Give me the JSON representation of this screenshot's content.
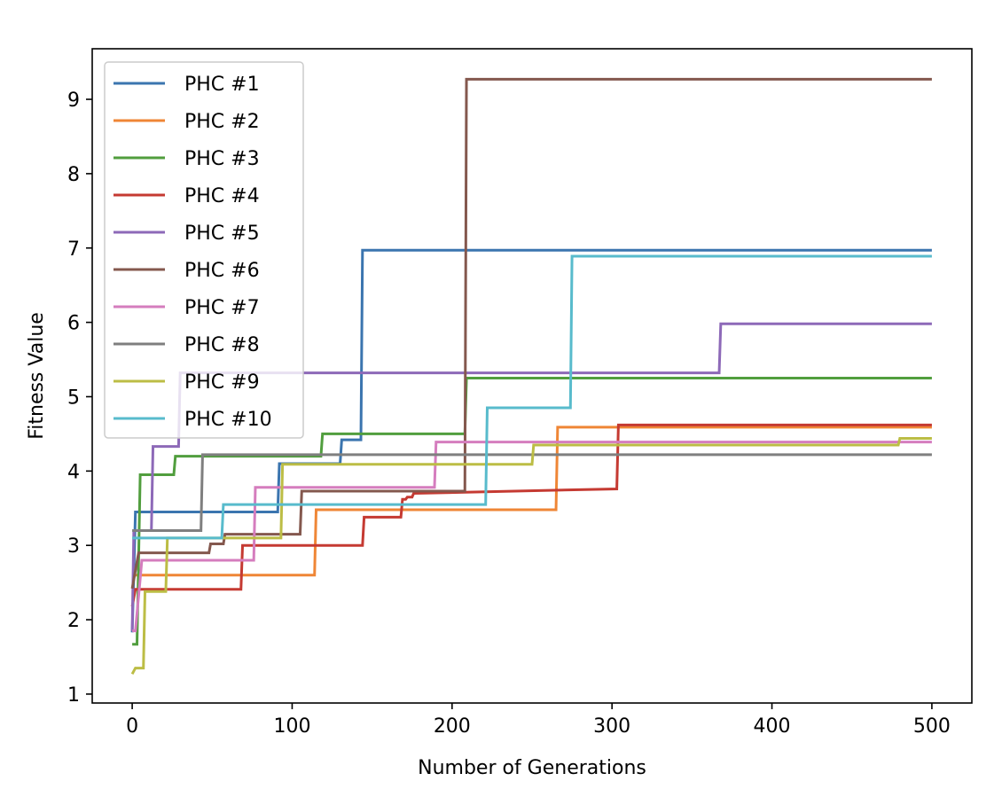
{
  "chart_data": {
    "type": "line",
    "title": "",
    "xlabel": "Number of Generations",
    "ylabel": "Fitness Value",
    "xlim": [
      -25,
      525
    ],
    "ylim": [
      0.88,
      9.68
    ],
    "xticks": [
      0,
      100,
      200,
      300,
      400,
      500
    ],
    "yticks": [
      1,
      2,
      3,
      4,
      5,
      6,
      7,
      8,
      9
    ],
    "legend_position": "upper-left",
    "grid": false,
    "series": [
      {
        "name": "PHC #1",
        "color": "#3b75af",
        "x": [
          0,
          1,
          2,
          91,
          92,
          130,
          131,
          143,
          144,
          500
        ],
        "y": [
          1.83,
          2.6,
          3.45,
          3.45,
          4.1,
          4.1,
          4.42,
          4.42,
          6.97,
          6.97
        ]
      },
      {
        "name": "PHC #2",
        "color": "#ef8636",
        "x": [
          0,
          114,
          115,
          265,
          266,
          500
        ],
        "y": [
          2.6,
          2.6,
          3.48,
          3.48,
          4.59,
          4.59
        ]
      },
      {
        "name": "PHC #3",
        "color": "#519e3e",
        "x": [
          0,
          3,
          5,
          26,
          27,
          118,
          119,
          208,
          209,
          500
        ],
        "y": [
          1.67,
          1.67,
          3.95,
          3.95,
          4.2,
          4.2,
          4.5,
          4.5,
          5.25,
          5.25
        ]
      },
      {
        "name": "PHC #4",
        "color": "#c53a32",
        "x": [
          0,
          2,
          68,
          69,
          144,
          145,
          168,
          169,
          171,
          172,
          175,
          176,
          303,
          304,
          500
        ],
        "y": [
          2.18,
          2.41,
          2.41,
          3.0,
          3.0,
          3.38,
          3.38,
          3.62,
          3.62,
          3.65,
          3.65,
          3.7,
          3.76,
          4.62,
          4.62
        ]
      },
      {
        "name": "PHC #5",
        "color": "#8d69b8",
        "x": [
          0,
          1,
          12,
          13,
          29,
          30,
          367,
          368,
          500
        ],
        "y": [
          1.85,
          3.2,
          3.2,
          4.33,
          4.33,
          5.32,
          5.32,
          5.98,
          5.98
        ]
      },
      {
        "name": "PHC #6",
        "color": "#84584e",
        "x": [
          0,
          4,
          48,
          49,
          57,
          58,
          105,
          106,
          208,
          209,
          500
        ],
        "y": [
          2.42,
          2.9,
          2.9,
          3.02,
          3.02,
          3.15,
          3.15,
          3.73,
          3.73,
          9.27,
          9.27
        ]
      },
      {
        "name": "PHC #7",
        "color": "#d57dbe",
        "x": [
          0,
          2,
          5,
          6,
          76,
          77,
          189,
          190,
          500
        ],
        "y": [
          1.85,
          1.85,
          2.55,
          2.8,
          2.8,
          3.78,
          3.78,
          4.39,
          4.39
        ]
      },
      {
        "name": "PHC #8",
        "color": "#7f7f7f",
        "x": [
          0,
          43,
          44,
          500
        ],
        "y": [
          3.2,
          3.2,
          4.22,
          4.22
        ]
      },
      {
        "name": "PHC #9",
        "color": "#bcbd45",
        "x": [
          0,
          2,
          7,
          8,
          21,
          22,
          93,
          94,
          250,
          251,
          479,
          480,
          500
        ],
        "y": [
          1.27,
          1.35,
          1.35,
          2.38,
          2.38,
          3.1,
          3.1,
          4.09,
          4.09,
          4.35,
          4.35,
          4.44,
          4.44
        ]
      },
      {
        "name": "PHC #10",
        "color": "#58bbcc",
        "x": [
          0,
          56,
          57,
          221,
          222,
          274,
          275,
          500
        ],
        "y": [
          3.1,
          3.1,
          3.55,
          3.55,
          4.85,
          4.85,
          6.89,
          6.89
        ]
      }
    ]
  }
}
